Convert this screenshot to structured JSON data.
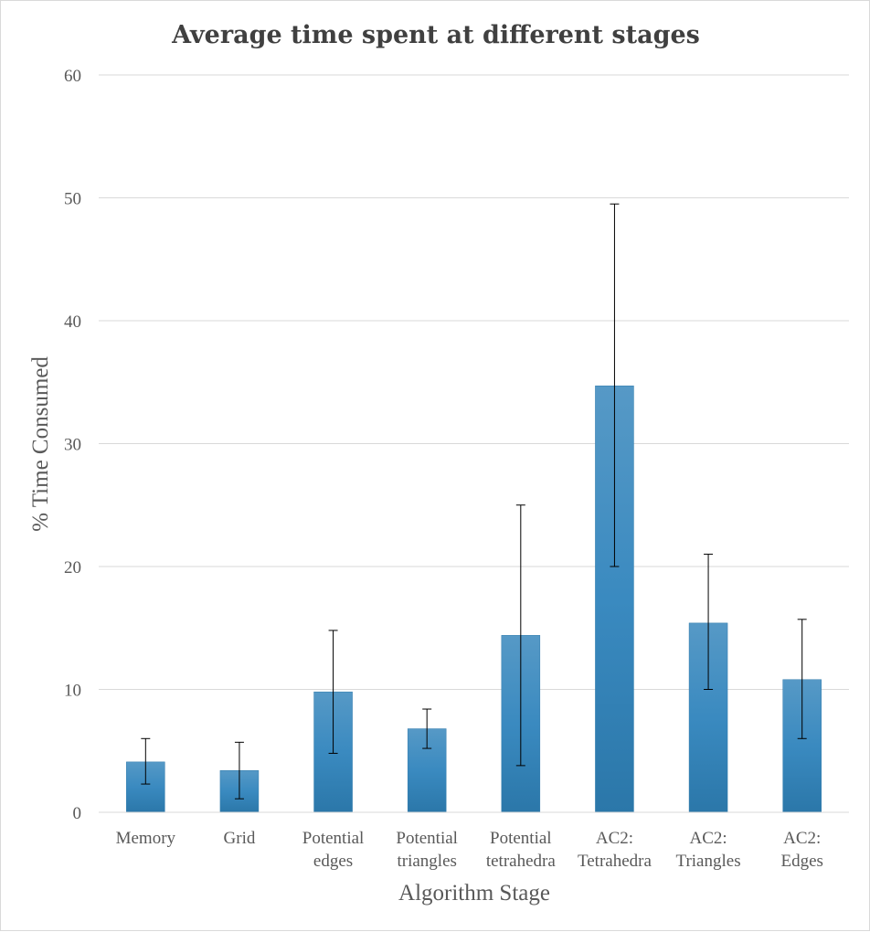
{
  "chart_data": {
    "type": "bar",
    "title": "Average time spent at different stages",
    "xlabel": "Algorithm Stage",
    "ylabel": "% Time Consumed",
    "ylim": [
      0,
      60
    ],
    "yticks": [
      0,
      10,
      20,
      30,
      40,
      50,
      60
    ],
    "grid": true,
    "legend": "none",
    "categories": [
      [
        "Memory"
      ],
      [
        "Grid"
      ],
      [
        "Potential",
        "edges"
      ],
      [
        "Potential",
        "triangles"
      ],
      [
        "Potential",
        "tetrahedra"
      ],
      [
        "AC2:",
        "Tetrahedra"
      ],
      [
        "AC2:",
        "Triangles"
      ],
      [
        "AC2:",
        "Edges"
      ]
    ],
    "values": [
      4.1,
      3.4,
      9.8,
      6.8,
      14.4,
      34.7,
      15.4,
      10.8
    ],
    "error_low": [
      2.3,
      1.1,
      4.8,
      5.2,
      3.8,
      20.0,
      10.0,
      6.0
    ],
    "error_high": [
      6.0,
      5.7,
      14.8,
      8.4,
      25.0,
      49.5,
      21.0,
      15.7
    ],
    "colors": {
      "bar": "#3b8bbf",
      "bar_edge": "#2f7aab",
      "grid": "#d9d9d9",
      "error": "#000000"
    }
  }
}
